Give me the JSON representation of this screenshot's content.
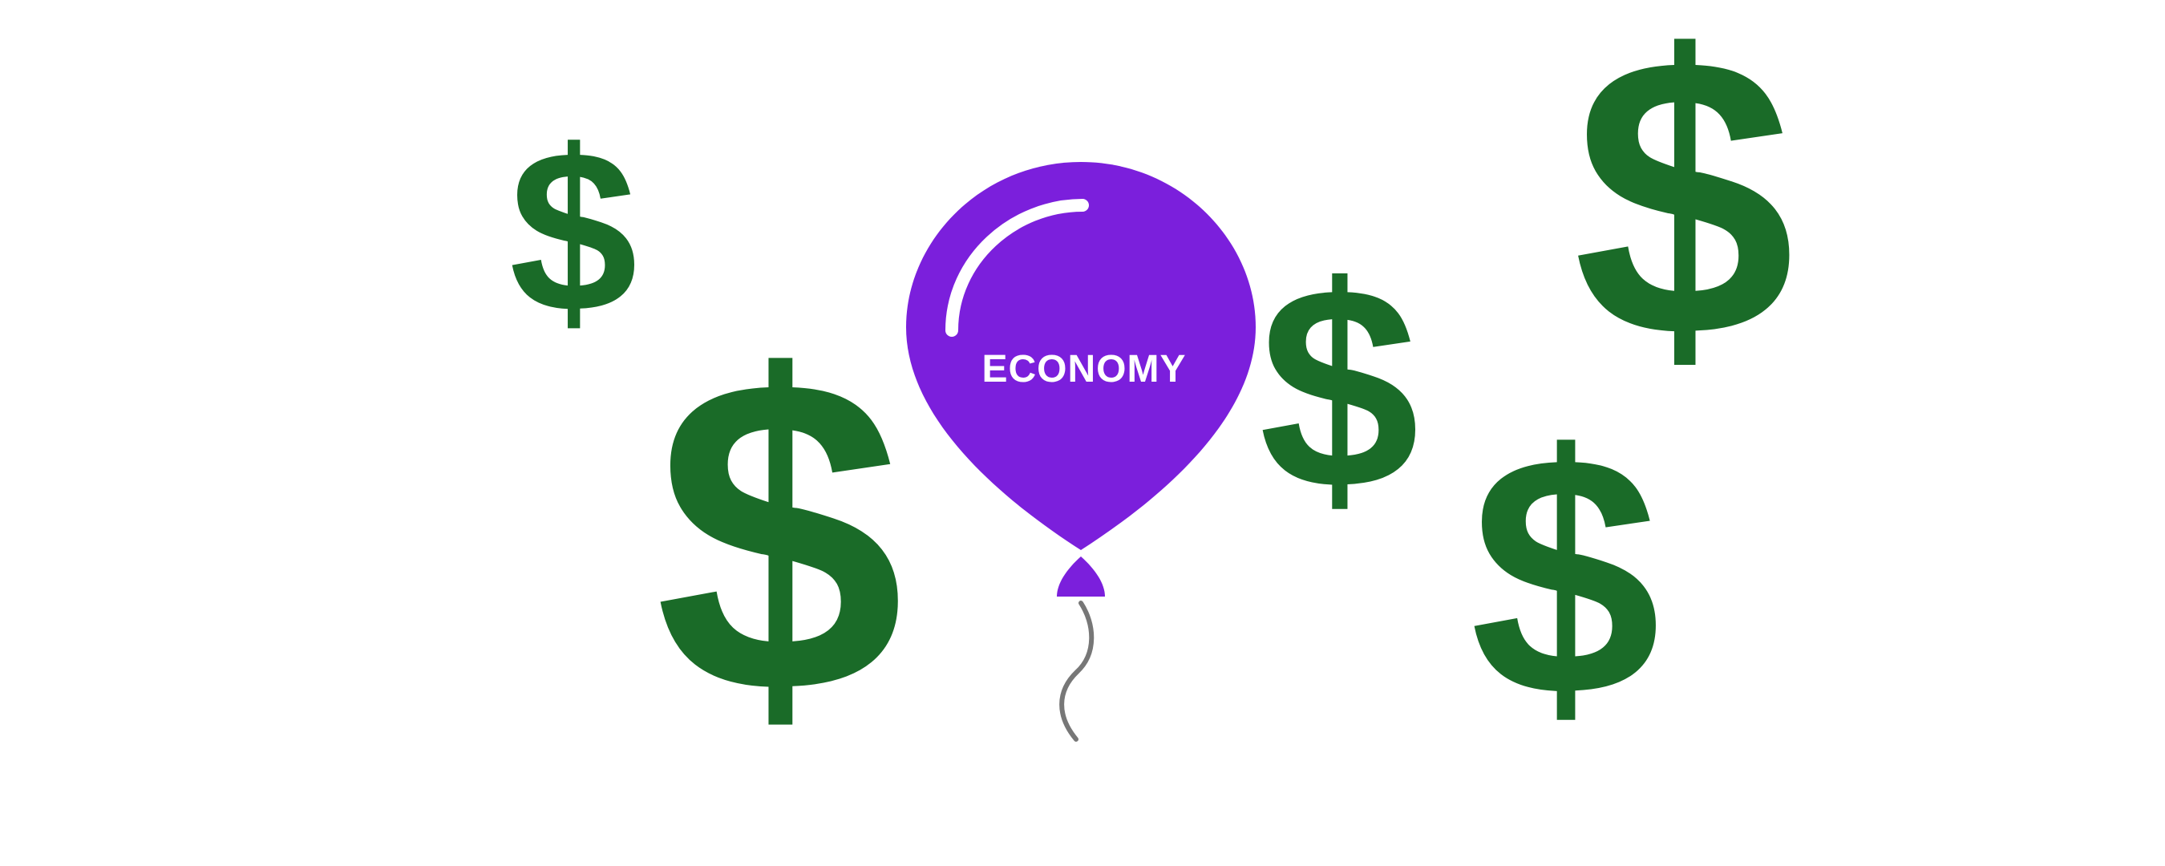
{
  "balloon": {
    "label": "ECONOMY",
    "color": "#7B1FDC",
    "label_color": "#FFFFFF",
    "highlight_color": "#FFFFFF",
    "string_color": "#777777"
  },
  "dollar_signs": {
    "symbol": "$",
    "color": "#1A6B28",
    "count": 5
  },
  "background_color": "#FFFFFF"
}
